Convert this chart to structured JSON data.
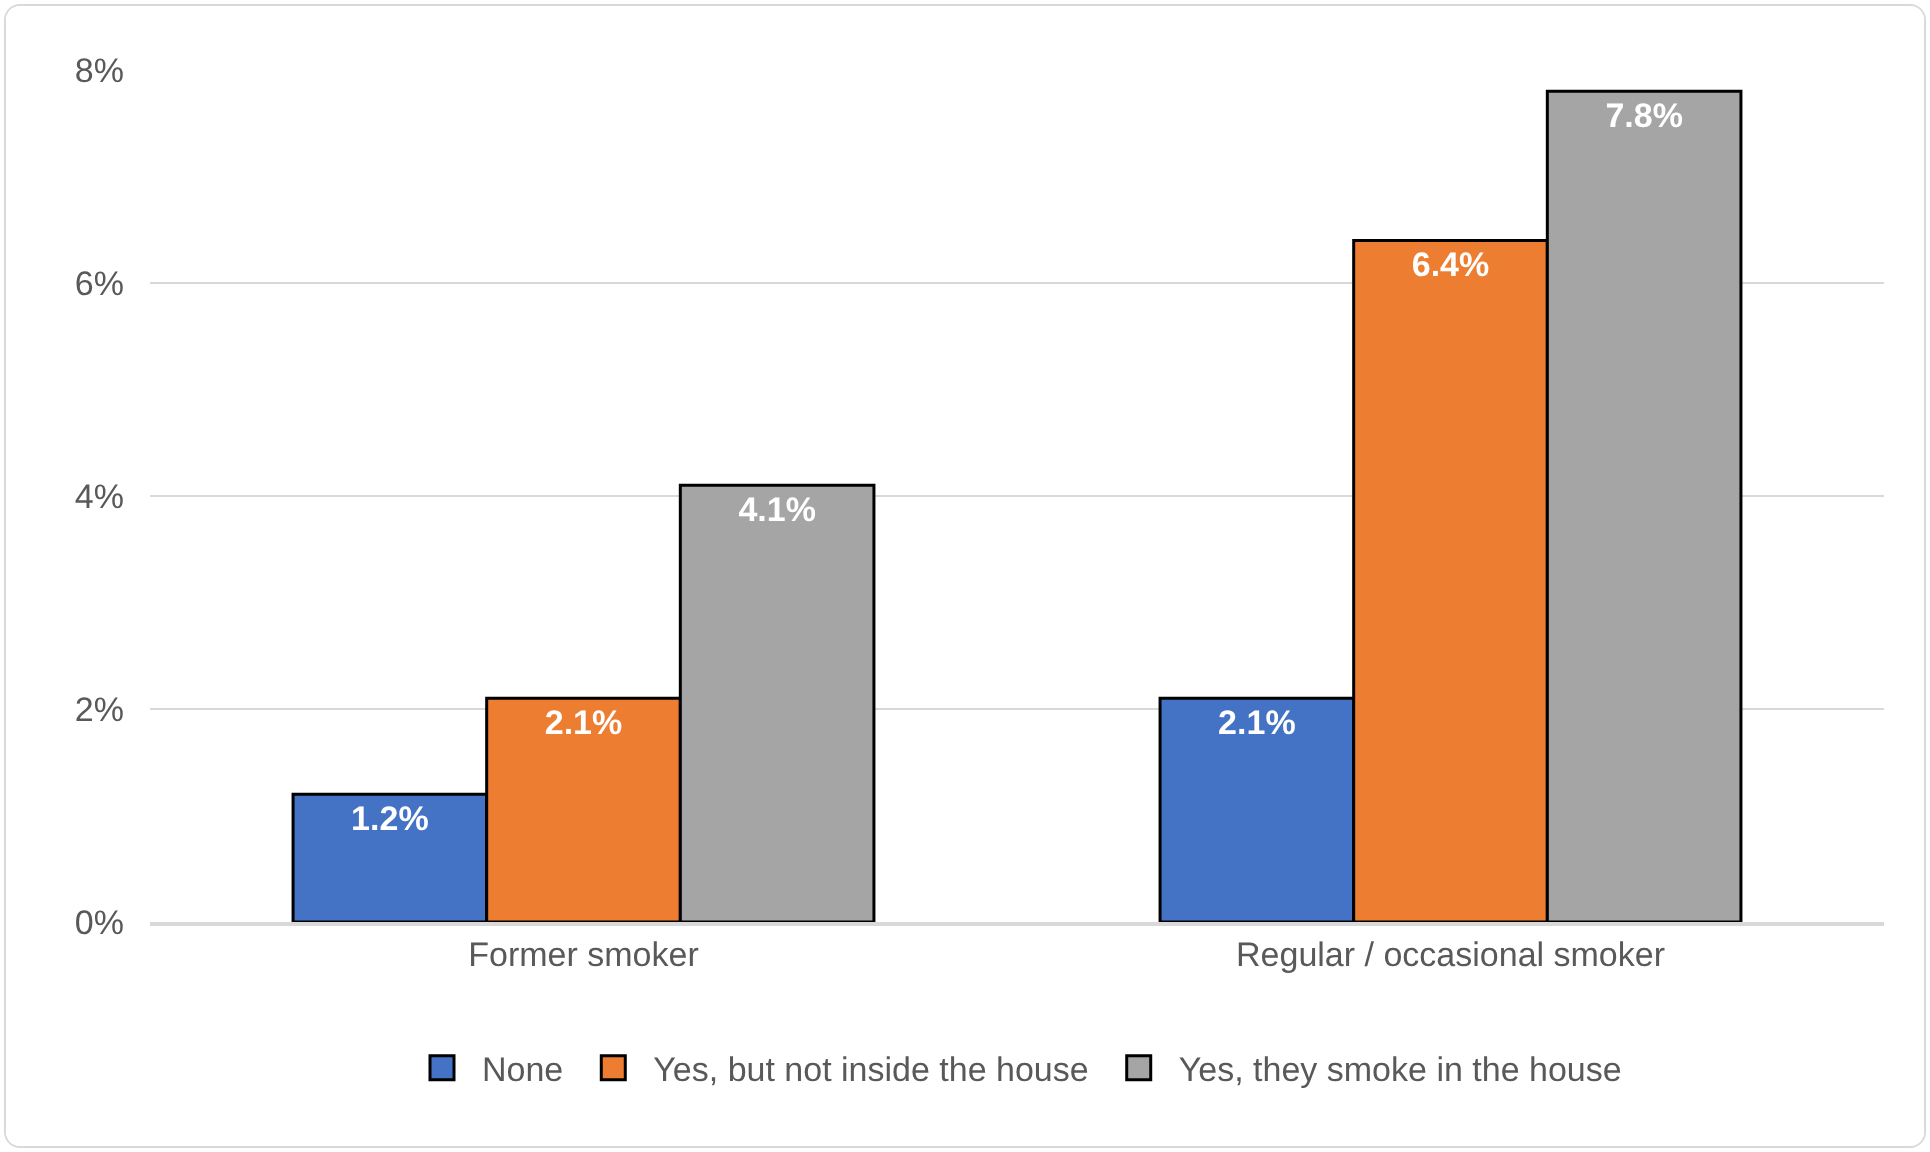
{
  "chart_data": {
    "type": "bar",
    "categories": [
      "Former smoker",
      "Regular / occasional smoker"
    ],
    "series": [
      {
        "name": "None",
        "color": "#4472c4",
        "values": [
          1.2,
          2.1
        ],
        "value_labels": [
          "1.2%",
          "2.1%"
        ]
      },
      {
        "name": "Yes, but not inside the house",
        "color": "#ed7d31",
        "values": [
          2.1,
          6.4
        ],
        "value_labels": [
          "2.1%",
          "6.4%"
        ]
      },
      {
        "name": "Yes, they smoke in the house",
        "color": "#a5a5a5",
        "values": [
          4.1,
          7.8
        ],
        "value_labels": [
          "4.1%",
          "7.8%"
        ]
      }
    ],
    "ylim": [
      0,
      8
    ],
    "yticks": [
      {
        "value": 0,
        "label": "0%"
      },
      {
        "value": 2,
        "label": "2%"
      },
      {
        "value": 4,
        "label": "4%"
      },
      {
        "value": 6,
        "label": "6%"
      },
      {
        "value": 8,
        "label": "8%"
      }
    ],
    "grid": "y",
    "legend": "bottom"
  }
}
